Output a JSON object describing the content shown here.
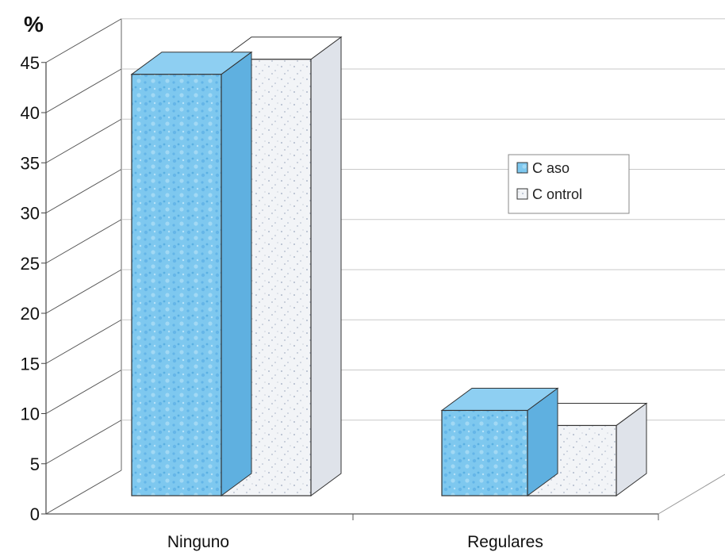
{
  "chart_data": {
    "type": "bar",
    "style": "3d-clustered-column",
    "unit_label": "%",
    "categories": [
      "Ninguno",
      "Regulares"
    ],
    "series": [
      {
        "name": "C aso",
        "values": [
          42,
          8.5
        ],
        "color": "#7ec8ef"
      },
      {
        "name": "C ontrol",
        "values": [
          43.5,
          7
        ],
        "color": "#f1f3f6"
      }
    ],
    "ylim": [
      0,
      45
    ],
    "yticks": [
      0,
      5,
      10,
      15,
      20,
      25,
      30,
      35,
      40,
      45
    ],
    "grid": true,
    "legend_position": "right"
  }
}
